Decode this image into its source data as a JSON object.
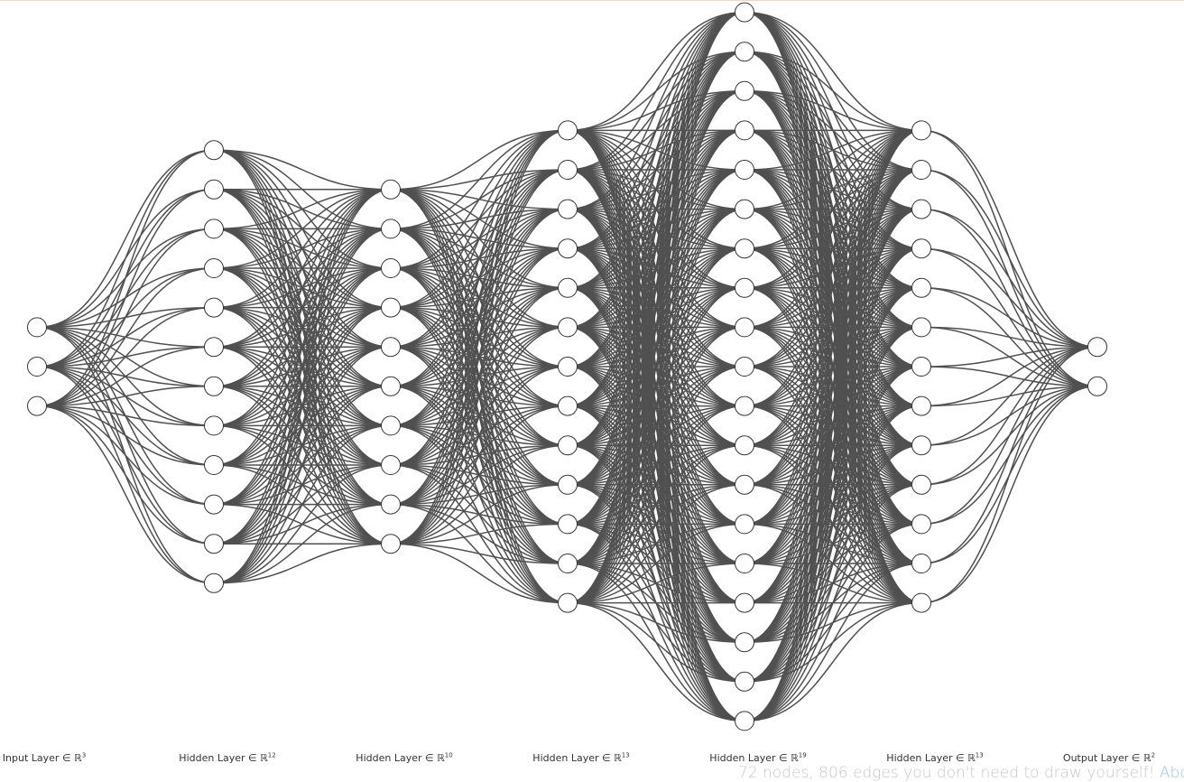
{
  "network": {
    "layers": [
      {
        "label_prefix": "Input Layer ∈ ℝ",
        "dimension": "3",
        "size": 3
      },
      {
        "label_prefix": "Hidden Layer ∈ ℝ",
        "dimension": "12",
        "size": 12
      },
      {
        "label_prefix": "Hidden Layer ∈ ℝ",
        "dimension": "10",
        "size": 10
      },
      {
        "label_prefix": "Hidden Layer ∈ ℝ",
        "dimension": "13",
        "size": 13
      },
      {
        "label_prefix": "Hidden Layer ∈ ℝ",
        "dimension": "19",
        "size": 19
      },
      {
        "label_prefix": "Hidden Layer ∈ ℝ",
        "dimension": "13",
        "size": 13
      },
      {
        "label_prefix": "Output Layer ∈ ℝ",
        "dimension": "2",
        "size": 2
      }
    ],
    "edge_color": "#505050",
    "node_fill": "#ffffff",
    "node_stroke": "#333333"
  },
  "footer": {
    "text": "72 nodes, 806 edges you don't need to draw yourself! ",
    "link_label": "About",
    "link_color": "#9fc4e6"
  },
  "colors": {
    "top_rule": "#f3d6d2",
    "background": "#ffffff"
  }
}
